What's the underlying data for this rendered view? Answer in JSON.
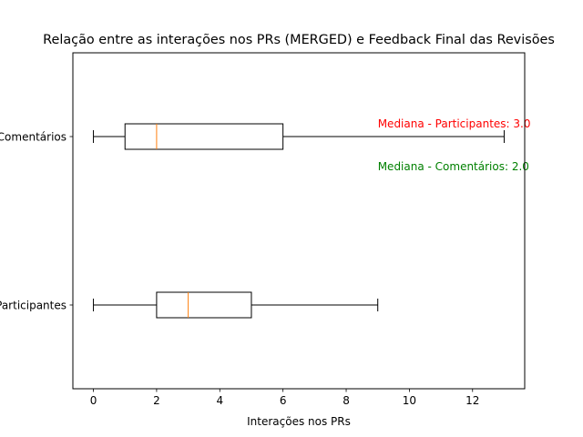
{
  "chart_data": {
    "type": "boxplot",
    "orientation": "horizontal",
    "title": "Relação entre as interações nos PRs (MERGED) e Feedback Final das Revisões",
    "xlabel": "Interações nos PRs",
    "ylabel": "",
    "xlim": [
      -0.65,
      13.65
    ],
    "xticks": [
      0,
      2,
      4,
      6,
      8,
      10,
      12
    ],
    "grid": false,
    "boxes": [
      {
        "label": "Participantes",
        "whisker_low": 0,
        "q1": 2,
        "median": 3,
        "q3": 5,
        "whisker_high": 9
      },
      {
        "label": "Comentários",
        "whisker_low": 0,
        "q1": 1,
        "median": 2,
        "q3": 6,
        "whisker_high": 13
      }
    ],
    "annotations": [
      {
        "text": "Mediana - Participantes: 3.0",
        "x": 9.0,
        "color": "#ff0000"
      },
      {
        "text": "Mediana - Comentários: 2.0",
        "x": 9.0,
        "color": "#008000"
      }
    ],
    "colors": {
      "box": "#000000",
      "median": "#ff7f0e"
    }
  }
}
